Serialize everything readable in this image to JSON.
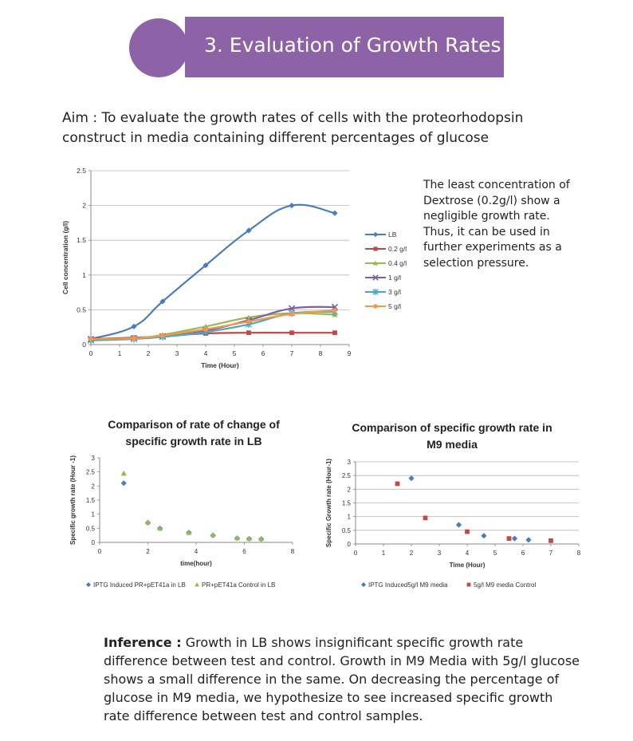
{
  "header": {
    "title": "3. Evaluation of Growth Rates"
  },
  "aim": {
    "text": "Aim : To evaluate the growth rates of cells with the proteorhodopsin construct in media containing different percentages of glucose"
  },
  "note": {
    "text": "The least concentration of Dextrose (0.2g/l) show a negligible growth rate. Thus, it can be used in further experiments as a selection pressure."
  },
  "inference": {
    "label": "Inference :",
    "text": "Growth in LB shows insignificant specific growth rate difference between  test and control. Growth in M9 Media with 5g/l glucose shows a small difference in the same. On decreasing the percentage of glucose in M9 media, we hypothesize to see increased specific growth rate difference between  test and control samples."
  },
  "chart_data": [
    {
      "type": "line",
      "title": "",
      "xlabel": "Time (Hour)",
      "ylabel": "Cell concentration (g/l)",
      "xlim": [
        0,
        9
      ],
      "ylim": [
        0,
        2.5
      ],
      "xticks": [
        "0",
        "1",
        "2",
        "3",
        "4",
        "5",
        "6",
        "7",
        "8",
        "9"
      ],
      "yticks": [
        "0",
        "0.5",
        "1",
        "1.5",
        "2",
        "2.5"
      ],
      "grid": "horizontal",
      "legend": "right",
      "series": [
        {
          "name": "LB",
          "color": "#4a7ebb",
          "marker": "diamond",
          "x": [
            0,
            1.5,
            2.5,
            4,
            5.5,
            7,
            8.5
          ],
          "y": [
            0.08,
            0.26,
            0.62,
            1.14,
            1.64,
            2.0,
            1.89
          ]
        },
        {
          "name": "0.2 g/l",
          "color": "#be4b48",
          "marker": "square",
          "x": [
            0,
            1.5,
            2.5,
            4,
            5.5,
            7,
            8.5
          ],
          "y": [
            0.08,
            0.1,
            0.12,
            0.16,
            0.17,
            0.17,
            0.17
          ]
        },
        {
          "name": "0.4 g/l",
          "color": "#98b954",
          "marker": "triangle",
          "x": [
            0,
            1.5,
            2.5,
            4,
            5.5,
            7,
            8.5
          ],
          "y": [
            0.07,
            0.09,
            0.14,
            0.26,
            0.39,
            0.45,
            0.43
          ]
        },
        {
          "name": "1 g/l",
          "color": "#7d60a0",
          "marker": "x",
          "x": [
            0,
            1.5,
            2.5,
            4,
            5.5,
            7,
            8.5
          ],
          "y": [
            0.08,
            0.09,
            0.12,
            0.2,
            0.35,
            0.52,
            0.54
          ]
        },
        {
          "name": "3 g/l",
          "color": "#46aac5",
          "marker": "star",
          "x": [
            0,
            1.5,
            2.5,
            4,
            5.5,
            7,
            8.5
          ],
          "y": [
            0.06,
            0.08,
            0.11,
            0.18,
            0.29,
            0.45,
            0.47
          ]
        },
        {
          "name": "5 g/l",
          "color": "#f79646",
          "marker": "circle",
          "x": [
            0,
            1.5,
            2.5,
            4,
            5.5,
            7,
            8.5
          ],
          "y": [
            0.08,
            0.09,
            0.13,
            0.22,
            0.33,
            0.44,
            0.49
          ]
        }
      ]
    },
    {
      "type": "scatter",
      "title": "Comparison of rate of change of specific growth rate in LB",
      "xlabel": "time(hour)",
      "ylabel": "Specific growth rate (Hour -1)",
      "xlim": [
        0,
        8
      ],
      "ylim": [
        0,
        3
      ],
      "xticks": [
        "0",
        "2",
        "4",
        "6",
        "8"
      ],
      "yticks": [
        "0",
        "0.5",
        "1",
        "1.5",
        "2",
        "2.5",
        "3"
      ],
      "grid": "none",
      "legend": "bottom",
      "series": [
        {
          "name": "IPTG Induced PR+pET41a in LB",
          "color": "#4a7ebb",
          "marker": "diamond",
          "x": [
            1,
            2,
            2.5,
            3.7,
            4.7,
            5.7,
            6.2,
            6.7
          ],
          "y": [
            2.1,
            0.7,
            0.5,
            0.35,
            0.25,
            0.15,
            0.13,
            0.12
          ]
        },
        {
          "name": "PR+pET41a Control in LB",
          "color": "#98b954",
          "marker": "triangle",
          "x": [
            1,
            2,
            2.5,
            3.7,
            4.7,
            5.7,
            6.2,
            6.7
          ],
          "y": [
            2.45,
            0.72,
            0.5,
            0.35,
            0.27,
            0.16,
            0.14,
            0.13
          ]
        }
      ]
    },
    {
      "type": "scatter",
      "title": "Comparison of specific growth rate in M9 media",
      "xlabel": "Time (Hour)",
      "ylabel": "Specific Growth rate (Hour-1)",
      "xlim": [
        0,
        8
      ],
      "ylim": [
        0,
        3
      ],
      "xticks": [
        "0",
        "1",
        "2",
        "3",
        "4",
        "5",
        "6",
        "7",
        "8"
      ],
      "yticks": [
        "0",
        "0.5",
        "1",
        "1.5",
        "2",
        "2.5",
        "3"
      ],
      "grid": "horizontal",
      "legend": "bottom",
      "series": [
        {
          "name": "IPTG Induced5g/l M9 media",
          "color": "#4a7ebb",
          "marker": "diamond",
          "x": [
            2,
            3.7,
            4.6,
            5.7,
            6.2
          ],
          "y": [
            2.4,
            0.7,
            0.3,
            0.2,
            0.15
          ]
        },
        {
          "name": "5g/l M9 media Control",
          "color": "#be4b48",
          "marker": "square",
          "x": [
            1.5,
            2.5,
            4,
            5.5,
            7
          ],
          "y": [
            2.2,
            0.95,
            0.45,
            0.2,
            0.12
          ]
        }
      ]
    }
  ]
}
